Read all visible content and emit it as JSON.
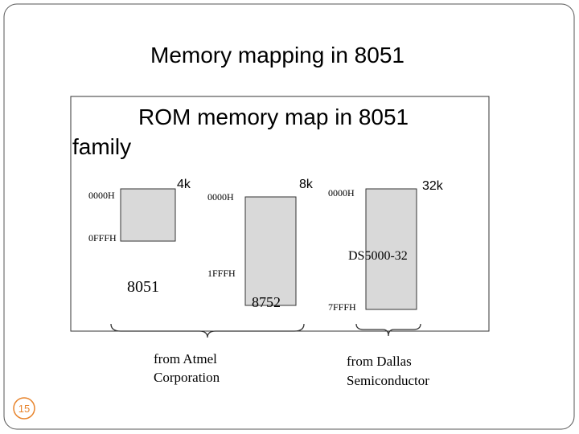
{
  "slide": {
    "title": "Memory mapping in 8051",
    "box_heading": [
      "ROM memory map in 8051",
      "family"
    ],
    "sizes": [
      "4k",
      "8k",
      "32k"
    ],
    "addresses": [
      "0000H",
      "0000H",
      "0000H",
      "0FFFH",
      "1FFFH",
      "7FFFH"
    ],
    "chips": [
      "8051",
      "8752",
      "DS5000-32"
    ],
    "vendors": [
      [
        "from Atmel",
        "Corporation"
      ],
      [
        "from Dallas",
        "Semiconductor"
      ]
    ],
    "page_number": "15"
  }
}
